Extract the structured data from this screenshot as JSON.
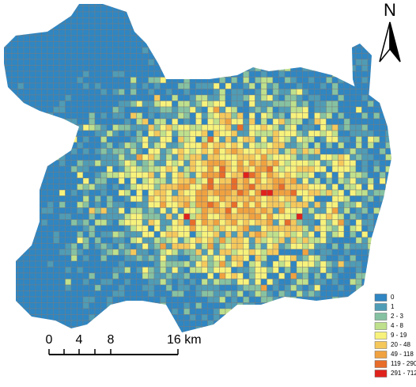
{
  "north_label": "N",
  "legend": {
    "items": [
      {
        "label": "0",
        "color": "#2f86c2"
      },
      {
        "label": "1",
        "color": "#4f9cb6"
      },
      {
        "label": "2 - 3",
        "color": "#86c2a2"
      },
      {
        "label": "4 - 8",
        "color": "#bfe08c"
      },
      {
        "label": "9 - 19",
        "color": "#f7f27c"
      },
      {
        "label": "20 - 48",
        "color": "#f5c85c"
      },
      {
        "label": "49 - 118",
        "color": "#f0a240"
      },
      {
        "label": "119 - 290",
        "color": "#e86c2a"
      },
      {
        "label": "291 - 712",
        "color": "#e0221c"
      }
    ]
  },
  "scale_bar": {
    "labels": [
      "0",
      "4",
      "8",
      "16 km"
    ]
  }
}
